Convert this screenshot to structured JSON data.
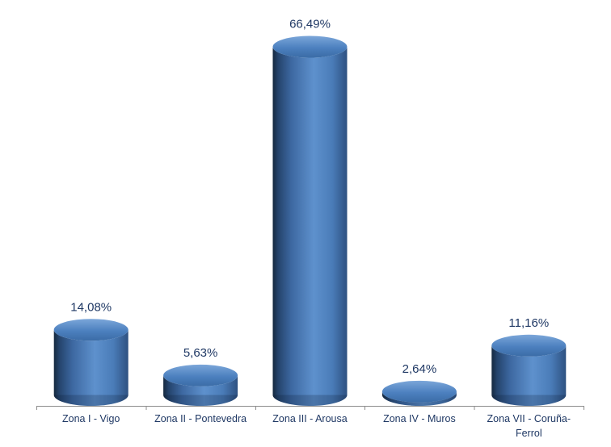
{
  "chart_data": {
    "type": "bar",
    "subtype": "cylinder-3d",
    "title": "",
    "xlabel": "",
    "ylabel": "",
    "unit": "%",
    "grid": false,
    "legend": false,
    "ylim": [
      0,
      70
    ],
    "categories": [
      "Zona I - Vigo",
      "Zona II - Pontevedra",
      "Zona III - Arousa",
      "Zona IV - Muros",
      "Zona VII - Coruña-Ferrol"
    ],
    "values": [
      14.08,
      5.63,
      66.49,
      2.64,
      11.16
    ],
    "value_labels": [
      "14,08%",
      "5,63%",
      "66,49%",
      "2,64%",
      "11,16%"
    ],
    "colors": {
      "background": "#FFFFFF",
      "label_text": "#1F3864",
      "category_text": "#1F3864",
      "axis_line": "#8C8C8C",
      "bar_gradient": [
        {
          "offset": 0,
          "color": "#15283E"
        },
        {
          "offset": 0.07,
          "color": "#24436B"
        },
        {
          "offset": 0.25,
          "color": "#3D68A1"
        },
        {
          "offset": 0.55,
          "color": "#5E91CD"
        },
        {
          "offset": 0.8,
          "color": "#4A7CB8"
        },
        {
          "offset": 1,
          "color": "#2E5181"
        }
      ],
      "top_gradient": [
        {
          "offset": 0,
          "color": "#7BA6D9"
        },
        {
          "offset": 0.55,
          "color": "#4C80BF"
        },
        {
          "offset": 1,
          "color": "#3B6CA6"
        }
      ],
      "bottom_shade": "rgba(8,25,45,0.22)"
    }
  }
}
